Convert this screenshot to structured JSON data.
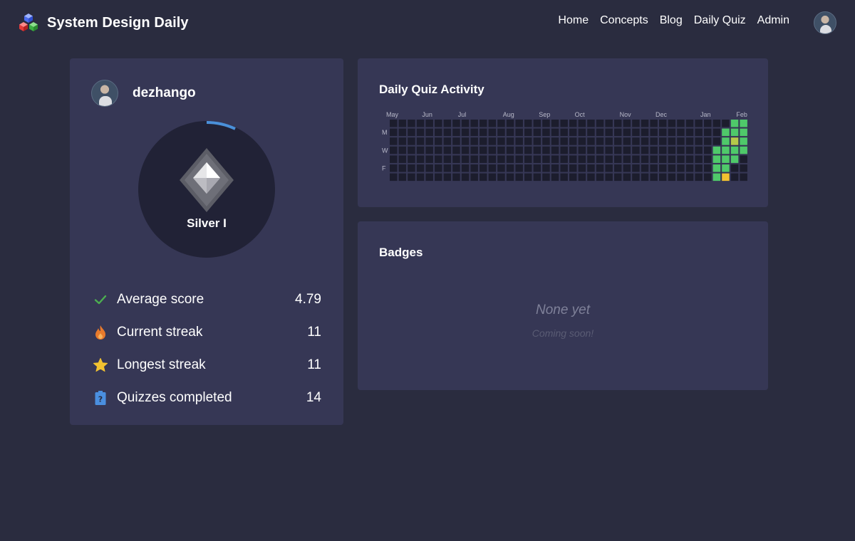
{
  "app": {
    "title": "System Design Daily",
    "logo_icon": "cubes-logo-icon"
  },
  "nav": {
    "items": [
      {
        "label": "Home"
      },
      {
        "label": "Concepts"
      },
      {
        "label": "Blog"
      },
      {
        "label": "Daily Quiz"
      },
      {
        "label": "Admin"
      }
    ],
    "avatar_icon": "user-avatar"
  },
  "profile": {
    "username": "dezhango",
    "rank": {
      "name": "Silver I",
      "progress": 0.07,
      "icon": "silver-diamond-icon",
      "progress_color": "#4a90d9"
    },
    "stats": [
      {
        "icon": "check-icon",
        "label": "Average score",
        "value": "4.79",
        "color": "#4caf50"
      },
      {
        "icon": "flame-icon",
        "label": "Current streak",
        "value": "11",
        "color": "#e87a2c"
      },
      {
        "icon": "star-icon",
        "label": "Longest streak",
        "value": "11",
        "color": "#f2c230"
      },
      {
        "icon": "quiz-tag-icon",
        "label": "Quizzes completed",
        "value": "14",
        "color": "#4a8fe0"
      }
    ]
  },
  "activity": {
    "title": "Daily Quiz Activity",
    "months": [
      "May",
      "Jun",
      "Jul",
      "Aug",
      "Sep",
      "Oct",
      "Nov",
      "Dec",
      "Jan",
      "Feb"
    ],
    "weekday_labels": [
      "M",
      "W",
      "F"
    ],
    "colors": {
      "empty": "#1c1d2d",
      "done": "#4fc96a",
      "partial": "#b5c94a",
      "today": "#f2c230"
    },
    "recent_weeks": [
      [
        "empty",
        "empty",
        "empty",
        "done",
        "done",
        "done",
        "done"
      ],
      [
        "empty",
        "done",
        "done",
        "done",
        "done",
        "done",
        "today"
      ],
      [
        "done",
        "done",
        "partial",
        "done",
        "done",
        "empty",
        "empty"
      ],
      [
        "done",
        "done",
        "done",
        "done",
        "empty",
        "empty",
        "empty"
      ]
    ]
  },
  "badges": {
    "title": "Badges",
    "empty_text": "None yet",
    "empty_subtext": "Coming soon!"
  }
}
